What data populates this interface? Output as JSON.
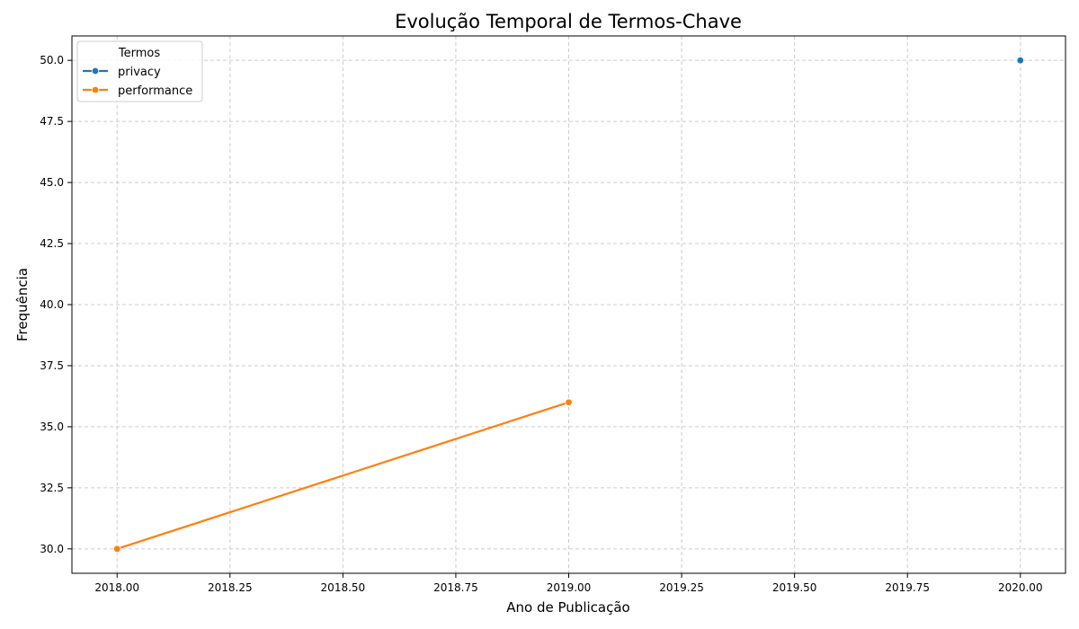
{
  "chart_data": {
    "type": "line",
    "title": "Evolução Temporal de Termos-Chave",
    "xlabel": "Ano de Publicação",
    "ylabel": "Frequência",
    "xlim": [
      1999.2,
      2020.2
    ],
    "ylim": [
      29.0,
      51.0
    ],
    "xlim_view": [
      2017.9,
      2020.1
    ],
    "ylim_view": [
      29.0,
      51.0
    ],
    "xticks": [
      2018.0,
      2018.25,
      2018.5,
      2018.75,
      2019.0,
      2019.25,
      2019.5,
      2019.75,
      2020.0
    ],
    "xtick_labels": [
      "2018.00",
      "2018.25",
      "2018.50",
      "2018.75",
      "2019.00",
      "2019.25",
      "2019.50",
      "2019.75",
      "2020.00"
    ],
    "yticks": [
      30.0,
      32.5,
      35.0,
      37.5,
      40.0,
      42.5,
      45.0,
      47.5,
      50.0
    ],
    "ytick_labels": [
      "30.0",
      "32.5",
      "35.0",
      "37.5",
      "40.0",
      "42.5",
      "45.0",
      "47.5",
      "50.0"
    ],
    "grid": true,
    "legend": {
      "title": "Termos",
      "position": "top-left"
    },
    "series": [
      {
        "name": "privacy",
        "color": "#1f77b4",
        "x": [
          2020.0
        ],
        "y": [
          50.0
        ]
      },
      {
        "name": "performance",
        "color": "#ff7f0e",
        "x": [
          2018.0,
          2019.0
        ],
        "y": [
          30.0,
          36.0
        ]
      }
    ]
  }
}
